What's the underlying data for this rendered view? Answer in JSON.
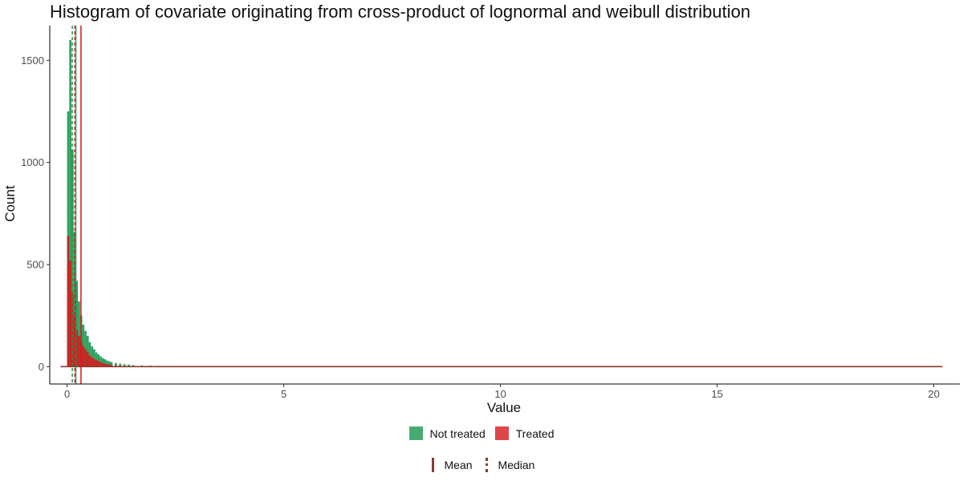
{
  "chart_data": {
    "type": "bar",
    "title": "Histogram of covariate originating from cross-product of lognormal and weibull distribution",
    "xlabel": "Value",
    "ylabel": "Count",
    "xlim": [
      -0.4,
      20.6
    ],
    "ylim": [
      -85,
      1670
    ],
    "x_ticks": [
      0,
      5,
      10,
      15,
      20
    ],
    "y_ticks": [
      0,
      500,
      1000,
      1500
    ],
    "grid": false,
    "legend_position": "bottom",
    "bin_width": 0.05,
    "x_range_drawn": [
      -0.15,
      20.2
    ],
    "series": [
      {
        "name": "Not treated",
        "color": "#1a9850",
        "bin_starts": [
          0.0,
          0.05,
          0.1,
          0.15,
          0.2,
          0.25,
          0.3,
          0.35,
          0.4,
          0.45,
          0.5,
          0.55,
          0.6,
          0.65,
          0.7,
          0.75,
          0.8,
          0.85,
          0.9,
          0.95,
          1.0,
          1.1,
          1.2,
          1.3,
          1.4,
          1.5,
          1.7,
          1.9,
          2.1,
          2.4
        ],
        "counts": [
          1250,
          1600,
          1060,
          660,
          420,
          320,
          250,
          205,
          175,
          150,
          120,
          100,
          85,
          70,
          60,
          50,
          42,
          36,
          30,
          26,
          22,
          18,
          15,
          12,
          10,
          8,
          6,
          5,
          4,
          3
        ]
      },
      {
        "name": "Treated",
        "color": "#d7191c",
        "bin_starts": [
          0.0,
          0.05,
          0.1,
          0.15,
          0.2,
          0.25,
          0.3,
          0.35,
          0.4,
          0.45,
          0.5,
          0.55,
          0.6,
          0.65,
          0.7,
          0.75,
          0.8,
          0.85,
          0.9,
          0.95,
          1.0,
          1.1,
          1.2,
          1.3,
          1.5,
          1.7,
          2.0
        ],
        "counts": [
          640,
          520,
          360,
          250,
          180,
          150,
          120,
          100,
          85,
          70,
          55,
          45,
          38,
          32,
          27,
          22,
          18,
          15,
          12,
          10,
          8,
          6,
          5,
          4,
          3,
          2,
          2
        ]
      }
    ],
    "reference_lines": [
      {
        "group": "Not treated",
        "stat": "Mean",
        "x": 0.2,
        "color": "#1a9850"
      },
      {
        "group": "Not treated",
        "stat": "Median",
        "x": 0.12,
        "color": "#1a9850"
      },
      {
        "group": "Treated",
        "stat": "Mean",
        "x": 0.32,
        "color": "#d7191c"
      },
      {
        "group": "Treated",
        "stat": "Median",
        "x": 0.18,
        "color": "#d7191c"
      }
    ]
  },
  "legend": {
    "fill_items": [
      {
        "label": "Not treated",
        "color": "#1a9850"
      },
      {
        "label": "Treated",
        "color": "#d7191c"
      }
    ],
    "line_items": [
      {
        "label": "Mean",
        "style": "solid",
        "color": "#8b3a2f"
      },
      {
        "label": "Median",
        "style": "dashed",
        "color": "#8b3a2f"
      }
    ]
  }
}
